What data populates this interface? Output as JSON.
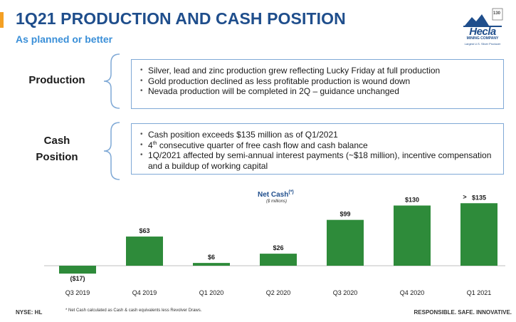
{
  "header": {
    "title": "1Q21 PRODUCTION AND CASH POSITION",
    "subtitle": "As planned or better",
    "accent_color": "#f4a024",
    "title_color": "#1f4e8c",
    "subtitle_color": "#3a8fd8"
  },
  "logo": {
    "name": "Hecla",
    "company": "MINING COMPANY",
    "tagline": "Largest U.S. Silver Producer",
    "badge": "130"
  },
  "production": {
    "label": "Production",
    "bullets": [
      "Silver, lead and zinc production grew reflecting Lucky Friday at full production",
      "Gold production declined as less profitable production is wound down",
      "Nevada production will be completed in 2Q – guidance unchanged"
    ]
  },
  "cash": {
    "label_line1": "Cash",
    "label_line2": "Position",
    "bullet1": "Cash position exceeds $135 million as of Q1/2021",
    "bullet2_num": "4",
    "bullet2_sup": "th",
    "bullet2_rest": " consecutive quarter of free cash flow and cash balance",
    "bullet3": "1Q/2021 affected by semi-annual interest payments (~$18 million), incentive compensation and a buildup of working capital"
  },
  "chart_data": {
    "type": "bar",
    "title": "Net Cash",
    "title_sup": "(*)",
    "subtitle": "($ millions)",
    "categories": [
      "Q3 2019",
      "Q4 2019",
      "Q1 2020",
      "Q2 2020",
      "Q3 2020",
      "Q4 2020",
      "Q1 2021"
    ],
    "values": [
      -17,
      63,
      6,
      26,
      99,
      130,
      135
    ],
    "labels": [
      "($17)",
      "$63",
      "$6",
      "$26",
      "$99",
      "$130",
      "$135"
    ],
    "last_label_prefix": ">",
    "bar_color": "#2e8b3a",
    "ylim": [
      -20,
      140
    ]
  },
  "footer": {
    "ticker": "NYSE: HL",
    "note": "* Net Cash calculated as Cash & cash equivalents less Revolver Draws.",
    "slogan": "RESPONSIBLE. SAFE. INNOVATIVE."
  }
}
